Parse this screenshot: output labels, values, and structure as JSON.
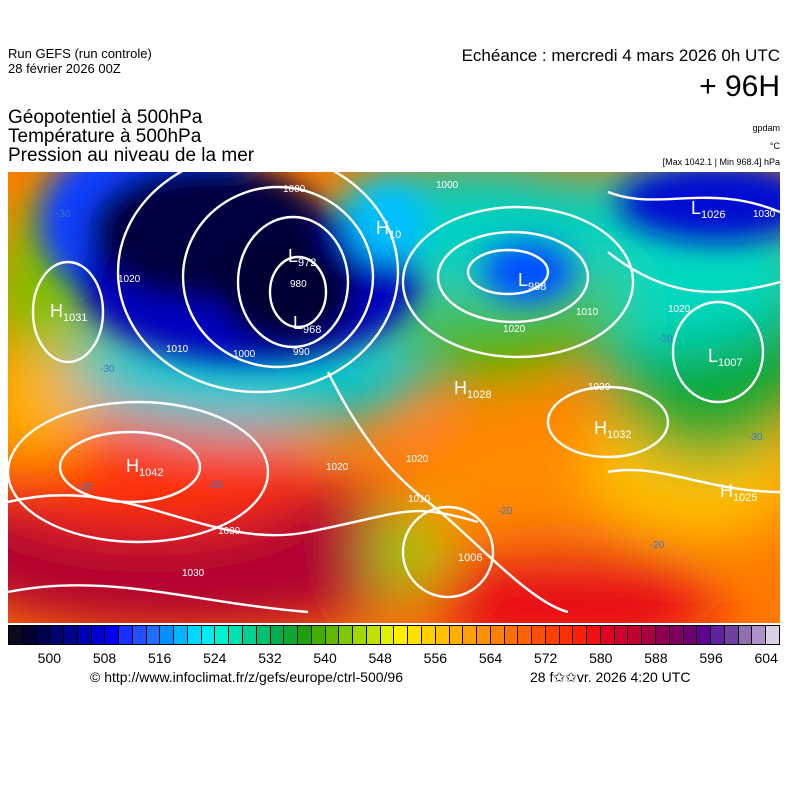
{
  "header": {
    "run_line1": "Run GEFS (run controle)",
    "run_line2": "28 février 2026 00Z",
    "echeance": "Echéance : mercredi 4 mars 2026 0h UTC",
    "lead_time": "+ 96H",
    "fields": [
      "Géopotentiel à 500hPa",
      "Température à 500hPa",
      "Pression au niveau de la mer"
    ],
    "units": [
      "gpdam",
      "°C",
      "[Max 1042.1 | Min 968.4] hPa"
    ]
  },
  "map": {
    "pressure_centers": [
      {
        "type": "H",
        "value": "1031"
      },
      {
        "type": "L",
        "value": "972"
      },
      {
        "type": "L",
        "value": "968"
      },
      {
        "type": "H",
        "value": "10"
      },
      {
        "type": "L",
        "value": "988"
      },
      {
        "type": "L",
        "value": "1026"
      },
      {
        "type": "L",
        "value": "1007"
      },
      {
        "type": "H",
        "value": "1028"
      },
      {
        "type": "H",
        "value": "1032"
      },
      {
        "type": "H",
        "value": "1042"
      },
      {
        "type": "H",
        "value": "1025"
      },
      {
        "type": "",
        "value": "1006"
      }
    ],
    "isobar_labels": [
      "1000",
      "990",
      "980",
      "1020",
      "1010",
      "1000",
      "1000",
      "1010",
      "1020",
      "1020",
      "1030",
      "1020",
      "1030",
      "1030",
      "1020",
      "1010",
      "1030"
    ],
    "temperature_labels": [
      "-30",
      "-30",
      "-20",
      "-20",
      "-20",
      "-20",
      "-30",
      "-30"
    ]
  },
  "colorbar": {
    "colors": [
      "#0a0a1e",
      "#000033",
      "#000050",
      "#00006e",
      "#00008c",
      "#0000b0",
      "#0000d0",
      "#0000f0",
      "#1530ff",
      "#2050ff",
      "#1e6eff",
      "#0090ff",
      "#00b4ff",
      "#00d8ff",
      "#00ecf0",
      "#00f0d0",
      "#00e0b0",
      "#00d090",
      "#00c070",
      "#00b050",
      "#10a830",
      "#20a010",
      "#40b000",
      "#60b800",
      "#80c800",
      "#a0d800",
      "#c0e000",
      "#e0f000",
      "#fff000",
      "#ffe000",
      "#ffd000",
      "#ffc000",
      "#ffb000",
      "#ffa000",
      "#ff9000",
      "#ff8000",
      "#ff7000",
      "#ff6000",
      "#ff5000",
      "#ff4000",
      "#ff3000",
      "#ff2000",
      "#f01010",
      "#e00020",
      "#d00030",
      "#c00030",
      "#a80040",
      "#900050",
      "#800060",
      "#700070",
      "#600090",
      "#6020a0",
      "#7040a0",
      "#9070b0",
      "#b090c8",
      "#dcd0e4"
    ],
    "ticks": [
      "500",
      "508",
      "516",
      "524",
      "532",
      "540",
      "548",
      "556",
      "564",
      "572",
      "580",
      "588",
      "596",
      "604"
    ]
  },
  "footer": {
    "url": "© http://www.infoclimat.fr/z/gefs/europe/ctrl-500/96",
    "generated": "28 f✩✩vr. 2026  4:20 UTC"
  }
}
